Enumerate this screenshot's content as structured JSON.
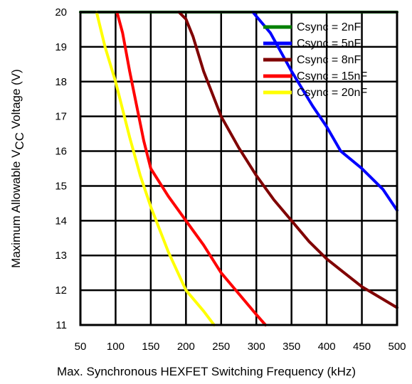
{
  "chart_data": {
    "type": "line",
    "xlabel": "Max. Synchronous HEXFET Switching Frequency (kHz)",
    "ylabel": {
      "prefix": "Maximum Allowable V",
      "subscript": "CC",
      "suffix": " Voltage (V)"
    },
    "xlim": [
      50,
      500
    ],
    "ylim": [
      11,
      20
    ],
    "x_ticks": [
      "50",
      "100",
      "150",
      "200",
      "250",
      "300",
      "350",
      "400",
      "450",
      "500"
    ],
    "y_ticks": [
      "11",
      "12",
      "13",
      "14",
      "15",
      "16",
      "17",
      "18",
      "19",
      "20"
    ],
    "grid": true,
    "legend_position": "top-right",
    "series": [
      {
        "name": "Csync = 2nF",
        "color": "#008000",
        "points": [
          [
            50,
            20
          ],
          [
            500,
            20
          ]
        ]
      },
      {
        "name": "Csync = 5nF",
        "color": "#0000ff",
        "points": [
          [
            295,
            20
          ],
          [
            320,
            19.4
          ],
          [
            350,
            18.3
          ],
          [
            380,
            17.3
          ],
          [
            400,
            16.7
          ],
          [
            420,
            16.0
          ],
          [
            450,
            15.5
          ],
          [
            480,
            14.9
          ],
          [
            500,
            14.3
          ]
        ]
      },
      {
        "name": "Csync = 8nF",
        "color": "#800000",
        "points": [
          [
            190,
            20
          ],
          [
            200,
            19.8
          ],
          [
            210,
            19.3
          ],
          [
            225,
            18.3
          ],
          [
            250,
            17.0
          ],
          [
            275,
            16.1
          ],
          [
            300,
            15.3
          ],
          [
            325,
            14.6
          ],
          [
            350,
            14.0
          ],
          [
            375,
            13.4
          ],
          [
            400,
            12.9
          ],
          [
            425,
            12.5
          ],
          [
            450,
            12.1
          ],
          [
            475,
            11.8
          ],
          [
            500,
            11.5
          ]
        ]
      },
      {
        "name": "Csync = 15nF",
        "color": "#ff0000",
        "points": [
          [
            102,
            20
          ],
          [
            110,
            19.4
          ],
          [
            120,
            18.3
          ],
          [
            130,
            17.3
          ],
          [
            140,
            16.3
          ],
          [
            150,
            15.5
          ],
          [
            175,
            14.7
          ],
          [
            200,
            14.0
          ],
          [
            225,
            13.3
          ],
          [
            250,
            12.5
          ],
          [
            275,
            11.9
          ],
          [
            300,
            11.3
          ],
          [
            313,
            11.0
          ]
        ]
      },
      {
        "name": "Csync = 20nF",
        "color": "#ffff00",
        "points": [
          [
            73,
            20
          ],
          [
            85,
            19.0
          ],
          [
            100,
            18.0
          ],
          [
            110,
            17.2
          ],
          [
            120,
            16.4
          ],
          [
            135,
            15.3
          ],
          [
            150,
            14.4
          ],
          [
            175,
            13.1
          ],
          [
            200,
            12.0
          ],
          [
            225,
            11.4
          ],
          [
            240,
            11.0
          ]
        ]
      }
    ]
  }
}
